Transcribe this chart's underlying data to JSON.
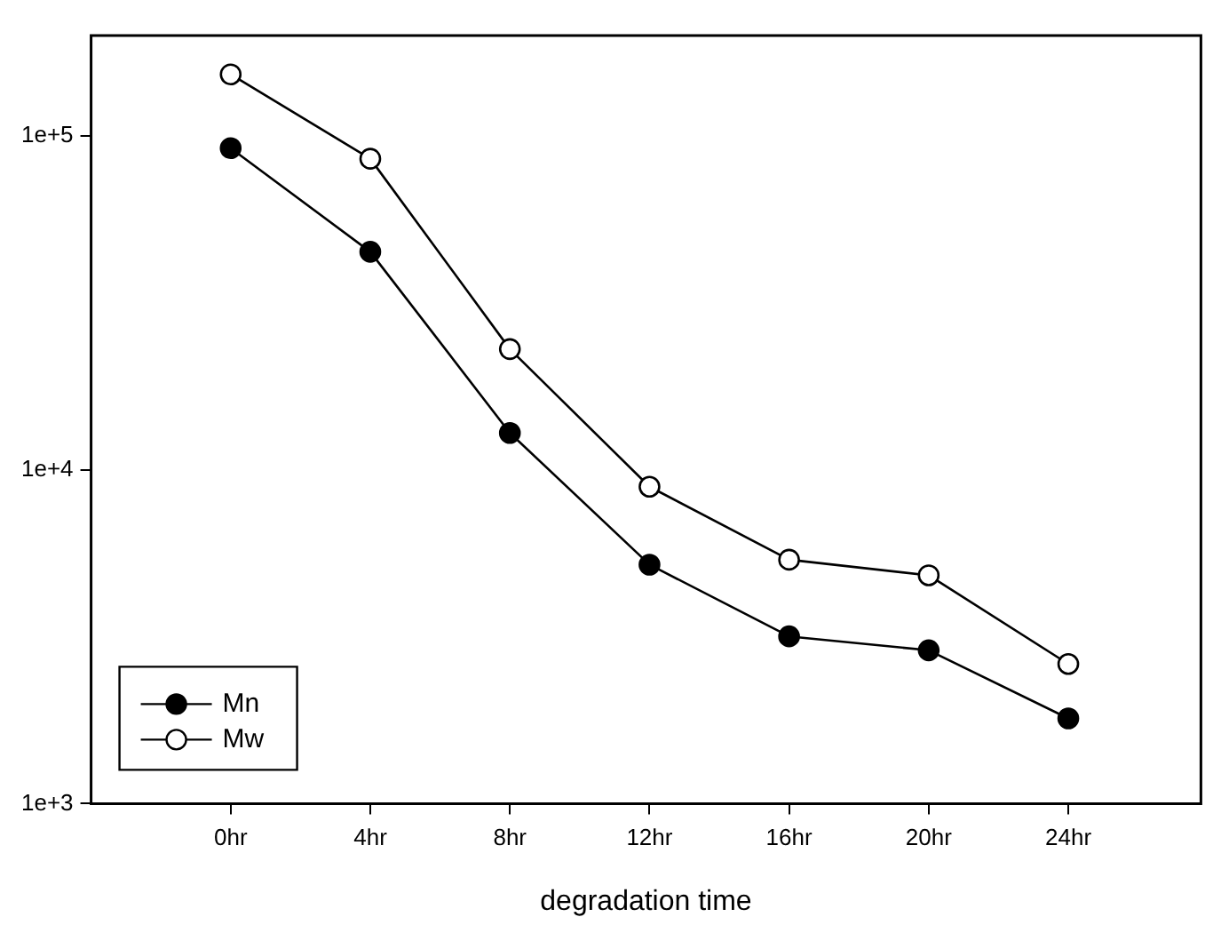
{
  "chart_data": {
    "type": "line",
    "xlabel": "degradation time",
    "categories": [
      "0hr",
      "4hr",
      "8hr",
      "12hr",
      "16hr",
      "20hr",
      "24hr"
    ],
    "series": [
      {
        "name": "Mn",
        "color": "#000000",
        "values": [
          92000,
          45000,
          12900,
          5200,
          3170,
          2880,
          1800
        ]
      },
      {
        "name": "Mw",
        "color": "#ffffff",
        "values": [
          153000,
          85500,
          23000,
          8900,
          5380,
          4830,
          2620
        ]
      }
    ],
    "log": "y",
    "ylim": [
      1000,
      200000
    ],
    "yticks": [
      {
        "value": 1000,
        "label": "1e+3"
      },
      {
        "value": 10000,
        "label": "1e+4"
      },
      {
        "value": 100000,
        "label": "1e+5"
      }
    ],
    "grid": false,
    "legend": "bottom left",
    "marker": "circle",
    "line_style": "solid"
  }
}
